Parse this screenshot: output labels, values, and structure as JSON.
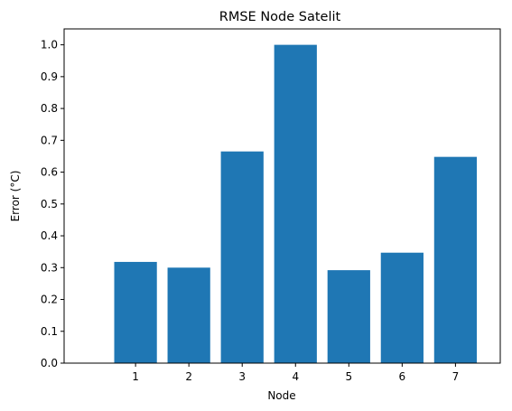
{
  "chart_data": {
    "type": "bar",
    "title": "RMSE Node Satelit",
    "xlabel": "Node",
    "ylabel": "Error (°C)",
    "categories": [
      "1",
      "2",
      "3",
      "4",
      "5",
      "6",
      "7"
    ],
    "values": [
      0.318,
      0.3,
      0.665,
      1.0,
      0.292,
      0.347,
      0.648
    ],
    "ylim": [
      0,
      1.05
    ],
    "yticks": [
      "0.0",
      "0.1",
      "0.2",
      "0.3",
      "0.4",
      "0.5",
      "0.6",
      "0.7",
      "0.8",
      "0.9",
      "1.0"
    ],
    "bar_color": "#1f77b4",
    "grid": false,
    "legend": false
  }
}
